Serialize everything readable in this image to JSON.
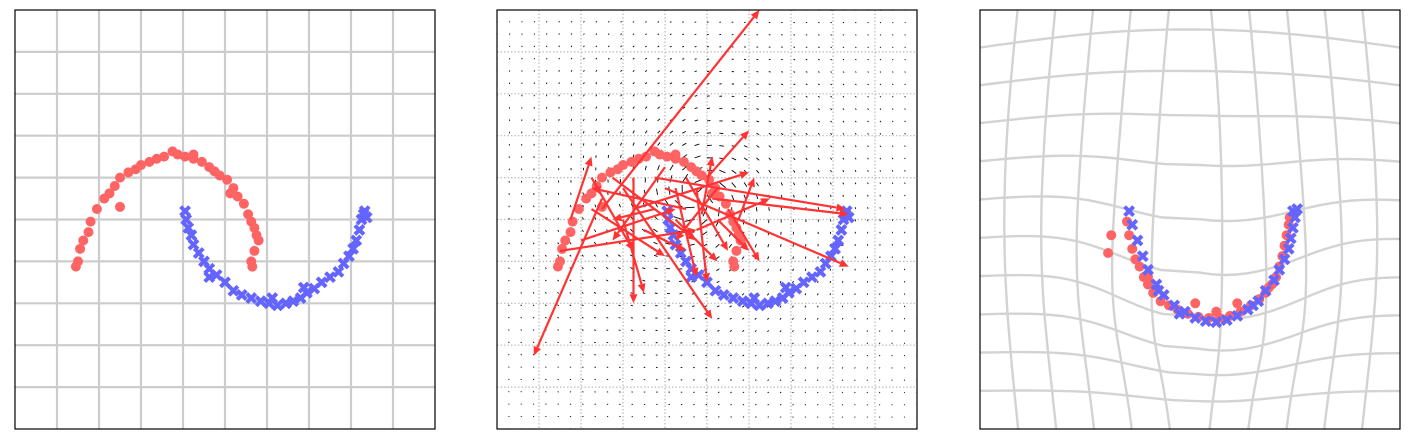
{
  "colors": {
    "class_a": "#ff6464",
    "class_b": "#6464ff",
    "arrow": "#ff3333",
    "grid": "#cccccc",
    "field": "#000000"
  },
  "chart_data": [
    {
      "type": "scatter",
      "panel": "left",
      "grid": true,
      "xlim": [
        -1.5,
        2.5
      ],
      "ylim": [
        -1.5,
        2.5
      ],
      "series": [
        {
          "marker": "circle",
          "color": "#ff6464",
          "points": [
            [
              -0.92,
              0.05
            ],
            [
              -0.9,
              0.1
            ],
            [
              -0.88,
              0.22
            ],
            [
              -0.85,
              0.3
            ],
            [
              -0.8,
              0.38
            ],
            [
              -0.78,
              0.48
            ],
            [
              -0.72,
              0.6
            ],
            [
              -0.65,
              0.7
            ],
            [
              -0.6,
              0.75
            ],
            [
              -0.55,
              0.82
            ],
            [
              -0.5,
              0.9
            ],
            [
              -0.42,
              0.95
            ],
            [
              -0.35,
              0.98
            ],
            [
              -0.3,
              1.02
            ],
            [
              -0.22,
              1.05
            ],
            [
              -0.15,
              1.08
            ],
            [
              -0.08,
              1.1
            ],
            [
              0.0,
              1.15
            ],
            [
              0.05,
              1.12
            ],
            [
              0.12,
              1.1
            ],
            [
              0.2,
              1.08
            ],
            [
              0.28,
              1.05
            ],
            [
              0.35,
              1.0
            ],
            [
              0.4,
              0.96
            ],
            [
              0.45,
              0.92
            ],
            [
              0.52,
              0.88
            ],
            [
              0.58,
              0.8
            ],
            [
              0.62,
              0.72
            ],
            [
              0.68,
              0.65
            ],
            [
              0.72,
              0.55
            ],
            [
              0.75,
              0.48
            ],
            [
              0.78,
              0.42
            ],
            [
              0.8,
              0.35
            ],
            [
              0.82,
              0.3
            ],
            [
              0.78,
              0.2
            ],
            [
              0.75,
              0.1
            ],
            [
              0.76,
              0.05
            ],
            [
              -0.5,
              0.62
            ],
            [
              0.2,
              1.12
            ],
            [
              0.55,
              0.75
            ]
          ]
        },
        {
          "marker": "x",
          "color": "#6464ff",
          "points": [
            [
              0.12,
              0.58
            ],
            [
              0.13,
              0.5
            ],
            [
              0.15,
              0.42
            ],
            [
              0.18,
              0.35
            ],
            [
              0.2,
              0.26
            ],
            [
              0.25,
              0.18
            ],
            [
              0.3,
              0.1
            ],
            [
              0.35,
              0.03
            ],
            [
              0.42,
              -0.03
            ],
            [
              0.5,
              -0.1
            ],
            [
              0.58,
              -0.18
            ],
            [
              0.66,
              -0.22
            ],
            [
              0.75,
              -0.25
            ],
            [
              0.84,
              -0.28
            ],
            [
              0.92,
              -0.3
            ],
            [
              1.0,
              -0.32
            ],
            [
              1.08,
              -0.3
            ],
            [
              1.15,
              -0.28
            ],
            [
              1.22,
              -0.25
            ],
            [
              1.28,
              -0.2
            ],
            [
              1.35,
              -0.16
            ],
            [
              1.42,
              -0.1
            ],
            [
              1.5,
              -0.05
            ],
            [
              1.58,
              0.0
            ],
            [
              1.63,
              0.08
            ],
            [
              1.68,
              0.15
            ],
            [
              1.72,
              0.22
            ],
            [
              1.75,
              0.3
            ],
            [
              1.78,
              0.4
            ],
            [
              1.8,
              0.5
            ],
            [
              1.82,
              0.55
            ],
            [
              1.85,
              0.52
            ],
            [
              1.83,
              0.58
            ],
            [
              0.35,
              -0.05
            ],
            [
              1.25,
              -0.15
            ],
            [
              0.95,
              -0.25
            ]
          ]
        }
      ]
    },
    {
      "type": "scatter",
      "panel": "middle",
      "grid": true,
      "vector_field": true,
      "xlim": [
        -1.5,
        2.5
      ],
      "ylim": [
        -1.5,
        2.5
      ],
      "series": [
        {
          "marker": "circle",
          "color": "#ff6464",
          "points": [
            [
              -0.92,
              0.05
            ],
            [
              -0.9,
              0.1
            ],
            [
              -0.88,
              0.22
            ],
            [
              -0.85,
              0.3
            ],
            [
              -0.8,
              0.38
            ],
            [
              -0.78,
              0.48
            ],
            [
              -0.72,
              0.6
            ],
            [
              -0.65,
              0.7
            ],
            [
              -0.6,
              0.75
            ],
            [
              -0.55,
              0.82
            ],
            [
              -0.5,
              0.9
            ],
            [
              -0.42,
              0.95
            ],
            [
              -0.35,
              0.98
            ],
            [
              -0.3,
              1.02
            ],
            [
              -0.22,
              1.05
            ],
            [
              -0.15,
              1.08
            ],
            [
              -0.08,
              1.1
            ],
            [
              0.0,
              1.15
            ],
            [
              0.05,
              1.12
            ],
            [
              0.12,
              1.1
            ],
            [
              0.2,
              1.08
            ],
            [
              0.28,
              1.05
            ],
            [
              0.35,
              1.0
            ],
            [
              0.4,
              0.96
            ],
            [
              0.45,
              0.92
            ],
            [
              0.52,
              0.88
            ],
            [
              0.58,
              0.8
            ],
            [
              0.62,
              0.72
            ],
            [
              0.68,
              0.65
            ],
            [
              0.72,
              0.55
            ],
            [
              0.75,
              0.48
            ],
            [
              0.78,
              0.42
            ],
            [
              0.8,
              0.35
            ],
            [
              0.82,
              0.3
            ],
            [
              0.78,
              0.2
            ],
            [
              0.75,
              0.1
            ],
            [
              0.76,
              0.05
            ],
            [
              -0.5,
              0.62
            ],
            [
              0.2,
              1.12
            ],
            [
              0.55,
              0.75
            ]
          ]
        },
        {
          "marker": "x",
          "color": "#6464ff",
          "points": [
            [
              0.12,
              0.58
            ],
            [
              0.13,
              0.5
            ],
            [
              0.15,
              0.42
            ],
            [
              0.18,
              0.35
            ],
            [
              0.2,
              0.26
            ],
            [
              0.25,
              0.18
            ],
            [
              0.3,
              0.1
            ],
            [
              0.35,
              0.03
            ],
            [
              0.42,
              -0.03
            ],
            [
              0.5,
              -0.1
            ],
            [
              0.58,
              -0.18
            ],
            [
              0.66,
              -0.22
            ],
            [
              0.75,
              -0.25
            ],
            [
              0.84,
              -0.28
            ],
            [
              0.92,
              -0.3
            ],
            [
              1.0,
              -0.32
            ],
            [
              1.08,
              -0.3
            ],
            [
              1.15,
              -0.28
            ],
            [
              1.22,
              -0.25
            ],
            [
              1.28,
              -0.2
            ],
            [
              1.35,
              -0.16
            ],
            [
              1.42,
              -0.1
            ],
            [
              1.5,
              -0.05
            ],
            [
              1.58,
              0.0
            ],
            [
              1.63,
              0.08
            ],
            [
              1.68,
              0.15
            ],
            [
              1.72,
              0.22
            ],
            [
              1.75,
              0.3
            ],
            [
              1.78,
              0.4
            ],
            [
              1.8,
              0.5
            ],
            [
              1.82,
              0.55
            ],
            [
              1.85,
              0.52
            ],
            [
              1.83,
              0.58
            ],
            [
              0.35,
              -0.05
            ],
            [
              1.25,
              -0.15
            ],
            [
              0.95,
              -0.25
            ]
          ]
        }
      ],
      "arrows": [
        [
          -0.5,
          0.6,
          1.0,
          2.5
        ],
        [
          -0.5,
          0.7,
          -1.15,
          -0.8
        ],
        [
          -0.3,
          0.8,
          0.55,
          -0.45
        ],
        [
          -0.2,
          0.9,
          -0.2,
          -0.3
        ],
        [
          0.0,
          0.9,
          1.82,
          0.6
        ],
        [
          0.1,
          0.8,
          1.85,
          0.05
        ],
        [
          0.2,
          0.8,
          0.4,
          -0.05
        ],
        [
          0.3,
          0.9,
          0.7,
          0.2
        ],
        [
          0.4,
          0.8,
          0.5,
          -0.1
        ],
        [
          0.5,
          0.9,
          0.9,
          1.35
        ],
        [
          0.55,
          0.7,
          1.85,
          0.55
        ],
        [
          0.6,
          0.5,
          0.9,
          0.2
        ],
        [
          -0.8,
          0.5,
          -0.6,
          1.1
        ],
        [
          -0.7,
          0.3,
          0.2,
          0.6
        ],
        [
          -0.6,
          0.6,
          0.1,
          0.15
        ],
        [
          -0.4,
          0.9,
          0.4,
          0.3
        ],
        [
          -0.3,
          0.5,
          -0.1,
          -0.2
        ],
        [
          -0.2,
          0.6,
          0.9,
          0.95
        ],
        [
          -0.1,
          0.4,
          0.3,
          0.2
        ],
        [
          0.1,
          1.0,
          -0.4,
          0.3
        ],
        [
          0.2,
          0.5,
          0.6,
          0.1
        ],
        [
          0.3,
          0.6,
          -0.6,
          0.8
        ],
        [
          0.4,
          0.4,
          1.1,
          0.7
        ],
        [
          0.6,
          0.8,
          0.2,
          0.3
        ],
        [
          0.7,
          0.6,
          1.0,
          0.1
        ],
        [
          0.8,
          0.5,
          0.95,
          0.9
        ],
        [
          -0.9,
          0.2,
          0.4,
          0.4
        ],
        [
          -0.6,
          0.9,
          -0.2,
          0.2
        ],
        [
          0.0,
          0.6,
          -0.4,
          0.5
        ],
        [
          0.45,
          0.55,
          0.55,
          1.1
        ]
      ]
    },
    {
      "type": "scatter",
      "panel": "right",
      "grid": true,
      "warped_grid": true,
      "xlim": [
        -1.5,
        2.5
      ],
      "ylim": [
        -1.5,
        2.5
      ],
      "series": [
        {
          "marker": "circle",
          "color": "#ff6464",
          "points": [
            [
              -0.1,
              0.48
            ],
            [
              -0.08,
              0.35
            ],
            [
              -0.05,
              0.22
            ],
            [
              -0.02,
              0.12
            ],
            [
              0.02,
              0.05
            ],
            [
              0.06,
              -0.05
            ],
            [
              0.1,
              -0.12
            ],
            [
              0.15,
              -0.2
            ],
            [
              0.22,
              -0.28
            ],
            [
              0.3,
              -0.32
            ],
            [
              0.38,
              -0.36
            ],
            [
              0.48,
              -0.4
            ],
            [
              0.58,
              -0.43
            ],
            [
              0.68,
              -0.44
            ],
            [
              0.78,
              -0.44
            ],
            [
              0.88,
              -0.42
            ],
            [
              0.98,
              -0.38
            ],
            [
              1.08,
              -0.32
            ],
            [
              1.16,
              -0.26
            ],
            [
              1.22,
              -0.2
            ],
            [
              1.28,
              -0.12
            ],
            [
              1.32,
              -0.05
            ],
            [
              1.35,
              0.05
            ],
            [
              1.38,
              0.15
            ],
            [
              1.4,
              0.25
            ],
            [
              1.42,
              0.35
            ],
            [
              1.44,
              0.45
            ],
            [
              1.45,
              0.52
            ],
            [
              -0.25,
              0.35
            ],
            [
              -0.28,
              0.18
            ],
            [
              0.55,
              -0.3
            ],
            [
              0.95,
              -0.3
            ],
            [
              1.25,
              -0.15
            ],
            [
              0.75,
              -0.38
            ],
            [
              0.1,
              -0.05
            ]
          ]
        },
        {
          "marker": "x",
          "color": "#6464ff",
          "points": [
            [
              -0.08,
              0.58
            ],
            [
              -0.05,
              0.45
            ],
            [
              0.0,
              0.3
            ],
            [
              0.05,
              0.15
            ],
            [
              0.1,
              0.02
            ],
            [
              0.18,
              -0.12
            ],
            [
              0.25,
              -0.22
            ],
            [
              0.35,
              -0.32
            ],
            [
              0.45,
              -0.38
            ],
            [
              0.55,
              -0.44
            ],
            [
              0.65,
              -0.47
            ],
            [
              0.75,
              -0.48
            ],
            [
              0.85,
              -0.46
            ],
            [
              0.95,
              -0.42
            ],
            [
              1.05,
              -0.36
            ],
            [
              1.15,
              -0.28
            ],
            [
              1.22,
              -0.18
            ],
            [
              1.3,
              -0.08
            ],
            [
              1.35,
              0.02
            ],
            [
              1.4,
              0.12
            ],
            [
              1.44,
              0.22
            ],
            [
              1.46,
              0.32
            ],
            [
              1.48,
              0.42
            ],
            [
              1.5,
              0.52
            ],
            [
              1.48,
              0.58
            ],
            [
              1.52,
              0.6
            ],
            [
              0.4,
              -0.4
            ],
            [
              1.1,
              -0.32
            ],
            [
              0.2,
              -0.18
            ]
          ]
        }
      ]
    }
  ]
}
